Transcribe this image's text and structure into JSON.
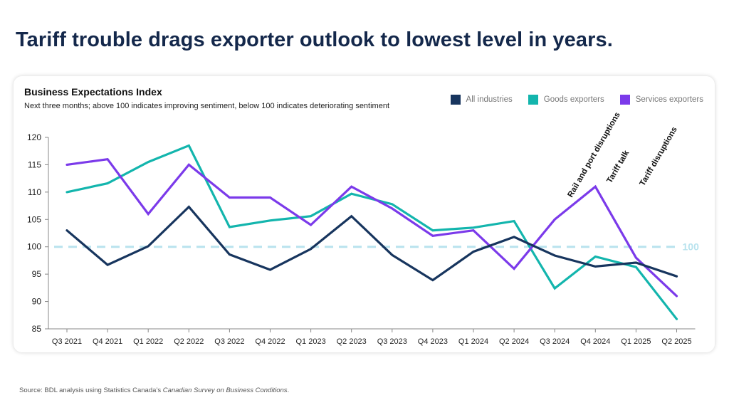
{
  "headline": "Tariff trouble drags exporter outlook to lowest level in years.",
  "chart_data": {
    "type": "line",
    "title": "Business Expectations Index",
    "subtitle": "Next three months; above 100 indicates improving sentiment, below 100 indicates deteriorating sentiment",
    "categories": [
      "Q3 2021",
      "Q4 2021",
      "Q1 2022",
      "Q2 2022",
      "Q3 2022",
      "Q4 2022",
      "Q1 2023",
      "Q2 2023",
      "Q3 2023",
      "Q4 2023",
      "Q1 2024",
      "Q2 2024",
      "Q3 2024",
      "Q4 2024",
      "Q1 2025",
      "Q2 2025"
    ],
    "ylim": [
      85,
      120
    ],
    "yticks": [
      85,
      90,
      95,
      100,
      105,
      110,
      115,
      120
    ],
    "reference_line": {
      "value": 100,
      "label": "100",
      "color": "#b9e3ee"
    },
    "legend_position": "top-right",
    "series": [
      {
        "name": "All industries",
        "color": "#17355e",
        "values": [
          103,
          96.7,
          100.1,
          107.3,
          98.6,
          95.8,
          99.6,
          105.6,
          98.5,
          93.9,
          99.1,
          101.8,
          98.4,
          96.4,
          97.1,
          94.6
        ]
      },
      {
        "name": "Goods exporters",
        "color": "#13b5ad",
        "values": [
          110,
          111.6,
          115.5,
          118.5,
          103.6,
          104.8,
          105.6,
          109.7,
          107.8,
          103,
          103.5,
          104.7,
          92.4,
          98.2,
          96.3,
          86.8
        ]
      },
      {
        "name": "Services exporters",
        "color": "#7b3aea",
        "values": [
          115,
          116,
          106,
          115,
          109,
          109,
          104,
          111,
          107,
          102,
          103,
          96,
          105,
          111,
          98,
          91
        ]
      }
    ],
    "annotations": [
      {
        "text": "Rail and port disruptions",
        "category": "Q3 2024"
      },
      {
        "text": "Tariff talk",
        "category": "Q4 2024"
      },
      {
        "text": "Tariff disruptions",
        "category": "Q1 2025"
      }
    ]
  },
  "source": {
    "prefix": "Source: BDL analysis using Statistics Canada’s ",
    "italic": "Canadian Survey on Business Conditions",
    "suffix": "."
  }
}
